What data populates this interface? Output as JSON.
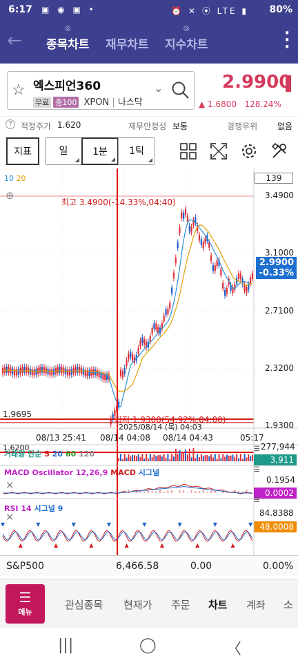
{
  "status_bar": {
    "time": "6:17",
    "battery": "80%",
    "left_icons": "▣ ◉ ▣ •",
    "right_icons": "⏰ ✕ ⦿ LTE ▮"
  },
  "navbar": {
    "back_icon": "back-arrow-icon",
    "tabs": [
      {
        "label": "종목차트",
        "active": true
      },
      {
        "label": "재무차트",
        "active": false
      },
      {
        "label": "지수차트",
        "active": false
      }
    ],
    "badge": "◎",
    "more_icon": "⋮"
  },
  "stock": {
    "name": "엑스피언360",
    "tag_free": "무료",
    "tag_margin": "증100",
    "ticker": "XPON",
    "exchange": "나스닥",
    "price": "2.9900",
    "change": "▲ 1.6800",
    "change_pct": "128.24%"
  },
  "info_row": {
    "fair_label": "적정주가",
    "fair_value": "1.620",
    "stability_label": "재무안정성",
    "stability_value": "보통",
    "rank_label": "경쟁우위",
    "rank_value": "없음"
  },
  "toolbar": {
    "indicator": "지표",
    "day": "일",
    "minute": "1분",
    "tick": "1틱"
  },
  "chart": {
    "ma_a": "10",
    "ma_b": "20",
    "count": "139",
    "high_label": "최고 3.4900(-14.33%,04:40)",
    "low_label": "최저 1.9300(54.92%,04:00)",
    "cross_left": "1.9695",
    "cross_date": "2025/08/14 (목) 04:03",
    "price_tag_value": "2.9900",
    "price_tag_pct": "-0.33%",
    "y_labels": [
      "3.4900",
      "3.1000",
      "2.7100",
      "2.3200",
      "1.9300"
    ],
    "x_labels": [
      "08/13 25:41",
      "08/14 04:08",
      "08/14 04:43",
      "05:17"
    ],
    "vol_title_a": "거래량 단순",
    "vol_title_b": "5",
    "vol_title_c": "20",
    "vol_title_d": "60",
    "vol_title_e": "120",
    "vol_ref": "1.6200",
    "vol_max": "277,944",
    "vol_last": "3,911",
    "macd_title_a": "MACD Oscillator 12,26,9",
    "macd_title_b": "MACD",
    "macd_title_c": "시그널",
    "macd_max": "0.1954",
    "macd_last": "0.0002",
    "rsi_title_a": "RSI 14",
    "rsi_title_b": "시그널 9",
    "rsi_max": "84.8388",
    "rsi_last": "48.0008"
  },
  "index_row": {
    "name": "S&P500",
    "value": "6,466.58",
    "change": "0.00",
    "pct": "0.00%"
  },
  "bottom_menu": {
    "menu_label": "메뉴",
    "items": [
      {
        "label": "관심종목",
        "active": false
      },
      {
        "label": "현재가",
        "active": false
      },
      {
        "label": "주문",
        "active": false
      },
      {
        "label": "차트",
        "active": true
      },
      {
        "label": "계좌",
        "active": false
      },
      {
        "label": "소",
        "active": false
      }
    ]
  },
  "system_nav": {
    "recent": "|||",
    "home": "◯",
    "back": "〈"
  },
  "colors": {
    "nav_bg": "#3d3f8f",
    "up_red": "#d43a5c",
    "down_blue": "#1e6fd0",
    "ma10": "#2b8fd8",
    "ma20": "#e0a000"
  }
}
